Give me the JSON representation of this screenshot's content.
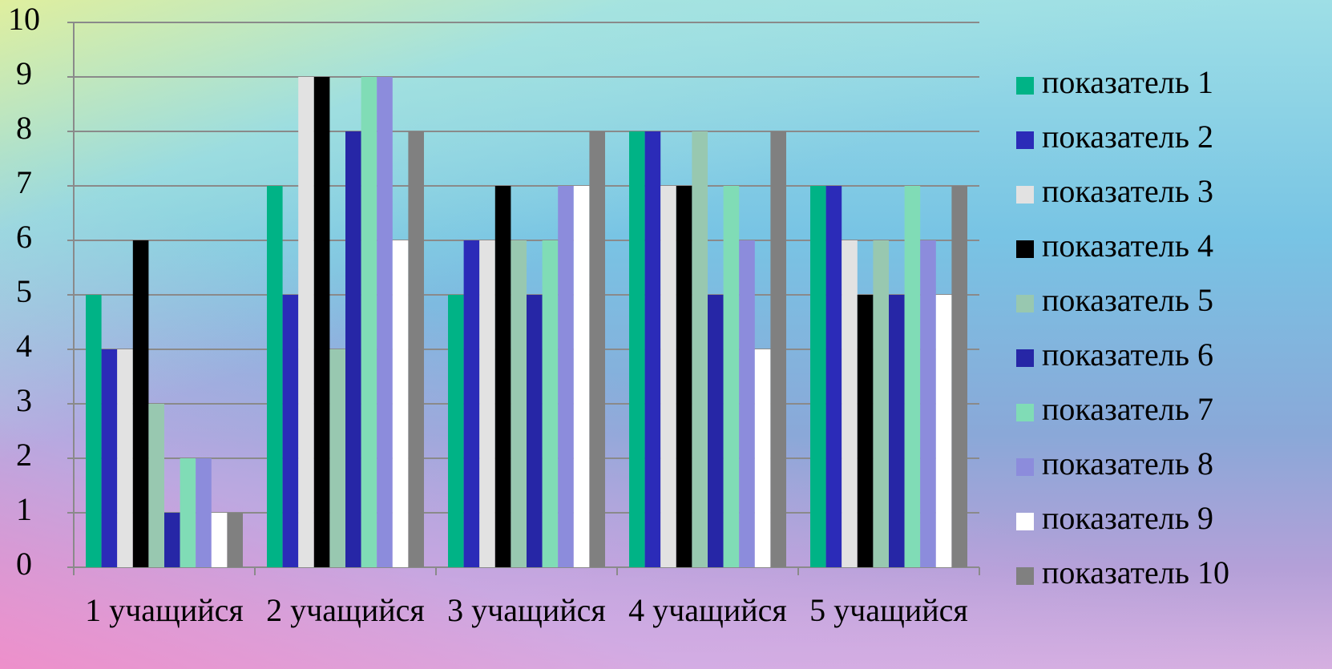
{
  "chart_data": {
    "type": "bar",
    "categories": [
      "1 учащийся",
      "2 учащийся",
      "3 учащийся",
      "4 учащийся",
      "5 учащийся"
    ],
    "series": [
      {
        "name": "показатель 1",
        "color": "#00b386",
        "values": [
          5,
          7,
          5,
          8,
          7
        ]
      },
      {
        "name": "показатель 2",
        "color": "#2b2bb8",
        "values": [
          4,
          5,
          6,
          8,
          7
        ]
      },
      {
        "name": "показатель 3",
        "color": "#e2e2e2",
        "values": [
          4,
          9,
          6,
          7,
          6
        ]
      },
      {
        "name": "показатель 4",
        "color": "#000000",
        "values": [
          6,
          9,
          7,
          7,
          5
        ]
      },
      {
        "name": "показатель 5",
        "color": "#98c8b0",
        "values": [
          3,
          4,
          6,
          8,
          6
        ]
      },
      {
        "name": "показатель 6",
        "color": "#2626a6",
        "values": [
          1,
          8,
          5,
          5,
          5
        ]
      },
      {
        "name": "показатель 7",
        "color": "#80dcb6",
        "values": [
          2,
          9,
          6,
          7,
          7
        ]
      },
      {
        "name": "показатель 8",
        "color": "#8c8cdc",
        "values": [
          2,
          9,
          7,
          6,
          6
        ]
      },
      {
        "name": "показатель 9",
        "color": "#ffffff",
        "values": [
          1,
          6,
          7,
          4,
          5
        ]
      },
      {
        "name": "показатель 10",
        "color": "#808080",
        "values": [
          1,
          8,
          8,
          8,
          7
        ]
      }
    ],
    "ylim": [
      0,
      10
    ],
    "yticks": [
      0,
      1,
      2,
      3,
      4,
      5,
      6,
      7,
      8,
      9,
      10
    ],
    "grid": true,
    "legend": "right"
  }
}
